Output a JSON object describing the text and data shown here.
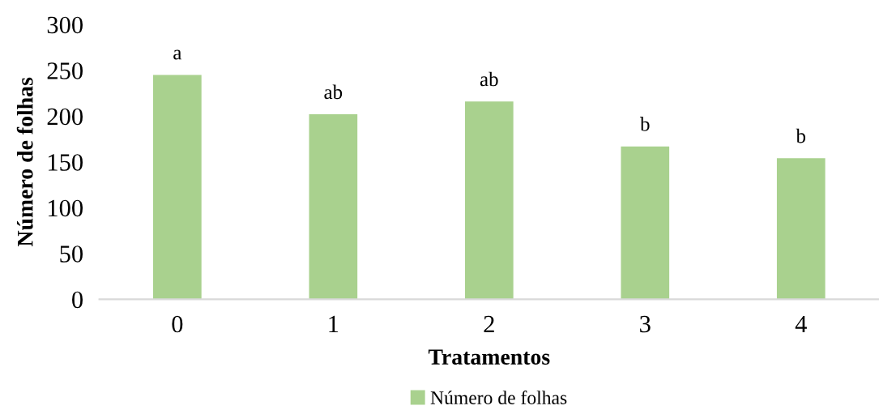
{
  "chart_data": {
    "type": "bar",
    "xlabel": "Tratamentos",
    "ylabel": "Número de folhas",
    "categories": [
      "0",
      "1",
      "2",
      "3",
      "4"
    ],
    "series": [
      {
        "name": "Número de folhas",
        "color": "#a9d18e",
        "values": [
          245,
          202,
          216,
          167,
          154
        ]
      }
    ],
    "ylim": [
      0,
      300
    ],
    "yticks": [
      0,
      50,
      100,
      150,
      200,
      250,
      300
    ],
    "grid": false,
    "legend": "bottom",
    "annotations": [
      {
        "text": "a",
        "x": "0",
        "y": 245
      },
      {
        "text": "ab",
        "x": "1",
        "y": 202
      },
      {
        "text": "ab",
        "x": "2",
        "y": 216
      },
      {
        "text": "b",
        "x": "3",
        "y": 167
      },
      {
        "text": "b",
        "x": "4",
        "y": 154
      }
    ]
  }
}
